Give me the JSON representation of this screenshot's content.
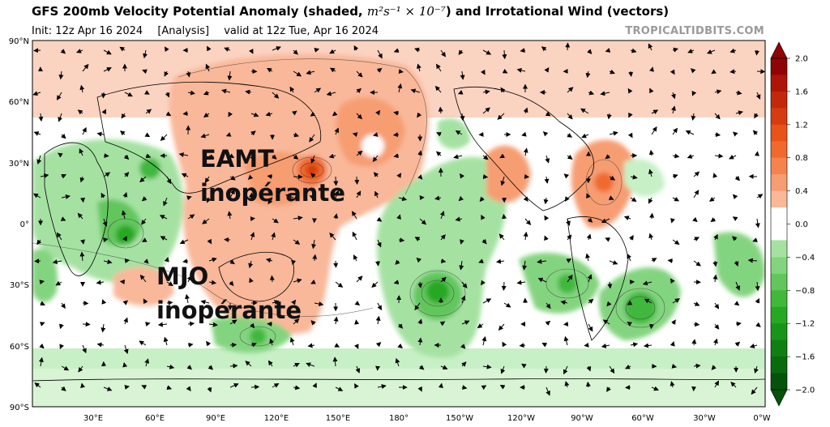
{
  "header": {
    "title_main": "GFS 200mb Velocity Potential Anomaly (shaded, ",
    "title_units": "m²s⁻¹ × 10⁻⁷",
    "title_tail": ") and Irrotational Wind (vectors)",
    "init": "Init: 12z Apr 16 2024",
    "analysis": "[Analysis]",
    "valid": "valid at 12z Tue, Apr 16 2024",
    "credit": "TROPICALTIDBITS.COM"
  },
  "axes": {
    "lat_labels": [
      "90°N",
      "60°N",
      "30°N",
      "0°",
      "30°S",
      "60°S",
      "90°S"
    ],
    "lon_labels": [
      "30°E",
      "60°E",
      "90°E",
      "120°E",
      "150°E",
      "180°",
      "150°W",
      "120°W",
      "90°W",
      "60°W",
      "30°W",
      "0°W"
    ]
  },
  "colorbar": {
    "ticks": [
      "2.0",
      "1.6",
      "1.2",
      "0.8",
      "0.4",
      "0.0",
      "−0.4",
      "−0.8",
      "−1.2",
      "−1.6",
      "−2.0"
    ],
    "positive_colors": [
      "#fbd3c1",
      "#f9b899",
      "#f79d72",
      "#f5834f",
      "#f06a2e",
      "#e8531a",
      "#d63c11",
      "#c3280c",
      "#ad1508",
      "#8f0404"
    ],
    "negative_colors": [
      "#c8f0c6",
      "#a5e2a2",
      "#83d47f",
      "#62c65d",
      "#41b83c",
      "#27a823",
      "#18941a",
      "#0f7f14",
      "#096a0f",
      "#03530a"
    ]
  },
  "annotations": {
    "eamt_line1": "EAMT",
    "eamt_line2": "inopérante",
    "mjo_line1": "MJO",
    "mjo_line2": "inopérante"
  }
}
